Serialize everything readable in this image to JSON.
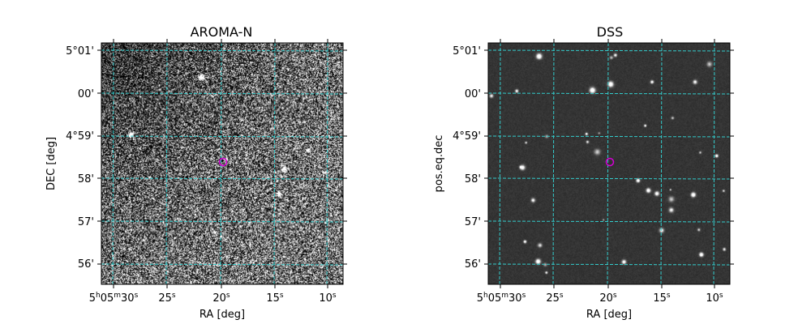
{
  "panels": [
    {
      "title": "AROMA-N",
      "xlabel": "RA [deg]",
      "ylabel": "DEC [deg]",
      "style": "noise",
      "marker_color": "#d400d4",
      "grid_color": "#33cccc"
    },
    {
      "title": "DSS",
      "xlabel": "RA [deg]",
      "ylabel": "pos.eq.dec",
      "style": "dss",
      "marker_color": "#d400d4",
      "grid_color": "#33cccc"
    }
  ],
  "x_ticks": [
    {
      "h": "5",
      "m": "05",
      "s": "30"
    },
    {
      "s": "25"
    },
    {
      "s": "20"
    },
    {
      "s": "15"
    },
    {
      "s": "10"
    }
  ],
  "y_ticks": [
    "5°01'",
    "00'",
    "4°59'",
    "58'",
    "57'",
    "56'"
  ]
}
